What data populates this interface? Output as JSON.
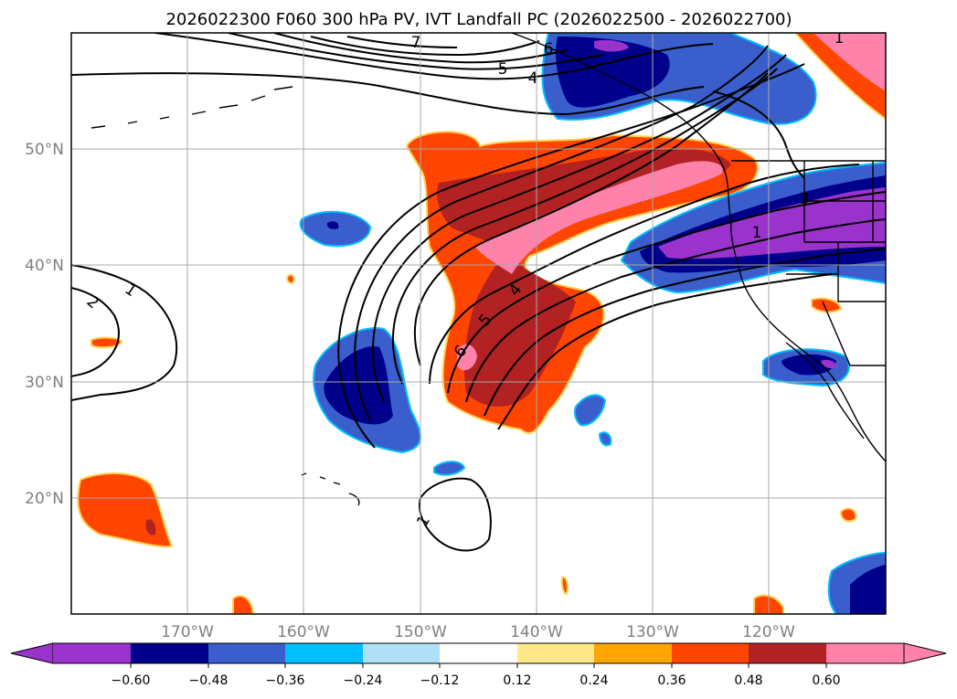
{
  "title": "2026022300 F060 300 hPa PV, IVT Landfall PC (2026022500 - 2026022700)",
  "axes": {
    "lon_ticks": [
      "170°W",
      "160°W",
      "150°W",
      "140°W",
      "130°W",
      "120°W"
    ],
    "lat_ticks": [
      "50°N",
      "40°N",
      "30°N",
      "20°N"
    ]
  },
  "colorbar": {
    "tick_labels": [
      "−0.60",
      "−0.48",
      "−0.36",
      "−0.24",
      "−0.12",
      "0.12",
      "0.24",
      "0.36",
      "0.48",
      "0.60"
    ],
    "colors": [
      "#9933cc",
      "#00008b",
      "#3a5fcd",
      "#00bfff",
      "#b0e0f8",
      "#ffffff",
      "#ffe88a",
      "#ffa500",
      "#ff4500",
      "#b22222",
      "#ff82ab"
    ]
  },
  "contour_labels": [
    "1",
    "2",
    "1",
    "4",
    "5",
    "6",
    "1",
    "3",
    "4",
    "5",
    "6",
    "7",
    "1"
  ]
}
